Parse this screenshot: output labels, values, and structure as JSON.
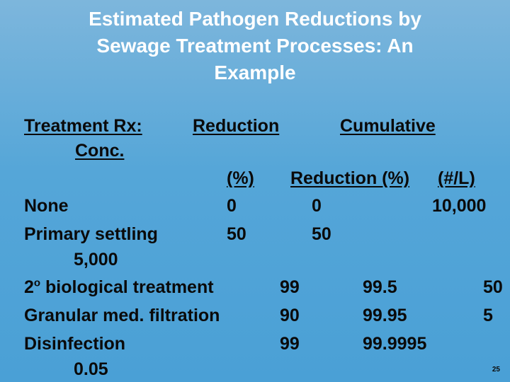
{
  "slide": {
    "title_lines": [
      "Estimated Pathogen Reductions by",
      "Sewage Treatment Processes:  An",
      "Example"
    ],
    "headers": {
      "treatment": "Treatment Rx:",
      "conc": "Conc.",
      "reduction": "Reduction",
      "cumulative": "Cumulative",
      "pct": "(%)",
      "reduction_pct": "Reduction (%)",
      "per_liter": "(#/L)"
    },
    "rows": [
      {
        "name": "None",
        "reduction": "0",
        "cumulative": "0",
        "conc": "10,000"
      },
      {
        "name": "Primary settling",
        "reduction": "50",
        "cumulative": "50",
        "conc": "5,000"
      },
      {
        "name_prefix": "2",
        "name_sup": "o",
        "name": " biological treatment",
        "reduction": "99",
        "cumulative": "99.5",
        "conc": "50"
      },
      {
        "name": "Granular med. filtration",
        "reduction": "90",
        "cumulative": "99.95",
        "conc": "5"
      },
      {
        "name": "Disinfection",
        "reduction": "99",
        "cumulative": "99.9995",
        "conc": "0.05"
      }
    ],
    "page_number": "25",
    "colors": {
      "background": "#4aa0d6",
      "title": "#ffffff",
      "text": "#0a0a0a"
    }
  }
}
